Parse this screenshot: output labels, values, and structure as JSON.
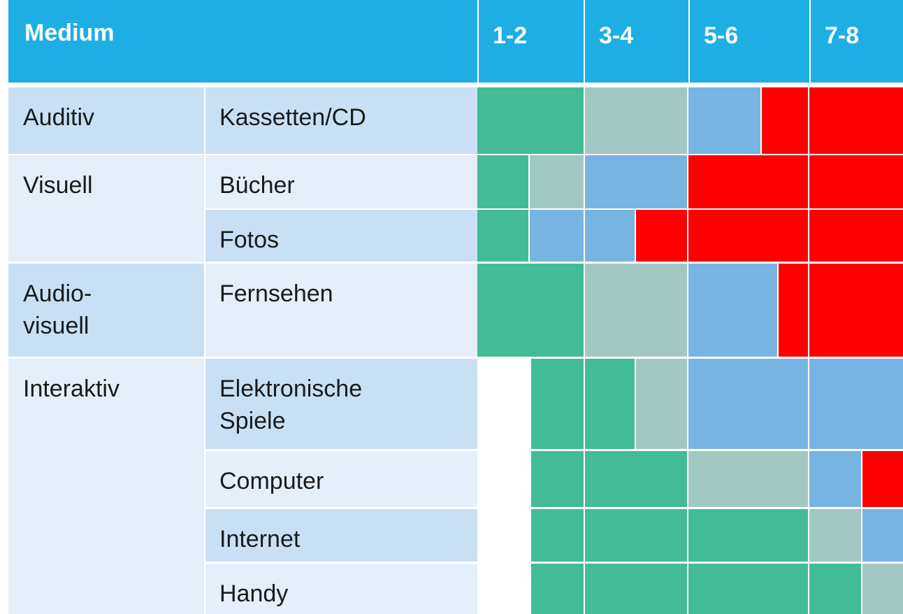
{
  "header": {
    "medium": "Medium",
    "ages": [
      "1-2",
      "3-4",
      "5-6",
      "7-8"
    ]
  },
  "groups": [
    {
      "label": "Auditiv",
      "media": [
        {
          "label": "Kassetten/CD",
          "segments": [
            "#42bb96",
            "#a2c8c4",
            "#78b4e2",
            "#fe0000",
            "#fe0000"
          ]
        }
      ]
    },
    {
      "label": "Visuell",
      "media": [
        {
          "label": "Bücher",
          "segments": [
            "#42bb96",
            "#a2c8c4",
            "#78b4e2",
            "#fe0000",
            "#fe0000"
          ]
        },
        {
          "label": "Fotos",
          "segments": [
            "#42bb96",
            "#78b4e2",
            "#78b4e2",
            "#fe0000",
            "#fe0000",
            "#fe0000"
          ]
        }
      ]
    },
    {
      "label": "Audio-\nvisuell",
      "media": [
        {
          "label": "Fernsehen",
          "segments": [
            "#42bb96",
            "#a2c8c4",
            "#78b4e2",
            "#fe0000",
            "#fe0000"
          ]
        }
      ]
    },
    {
      "label": "Interaktiv",
      "media": [
        {
          "label": "Elektronische\nSpiele",
          "segments": [
            "#42bb96",
            "#42bb96",
            "#a2c8c4",
            "#78b4e2",
            "#78b4e2"
          ]
        },
        {
          "label": "Computer",
          "segments": [
            "#42bb96",
            "#42bb96",
            "#a2c8c4",
            "#78b4e2",
            "#fe0000"
          ]
        },
        {
          "label": "Internet",
          "segments": [
            "#42bb96",
            "#42bb96",
            "#42bb96",
            "#a2c8c4",
            "#78b4e2"
          ]
        },
        {
          "label": "Handy",
          "segments": [
            "#42bb96",
            "#42bb96",
            "#42bb96",
            "#42bb96",
            "#a2c8c4"
          ]
        }
      ]
    }
  ]
}
